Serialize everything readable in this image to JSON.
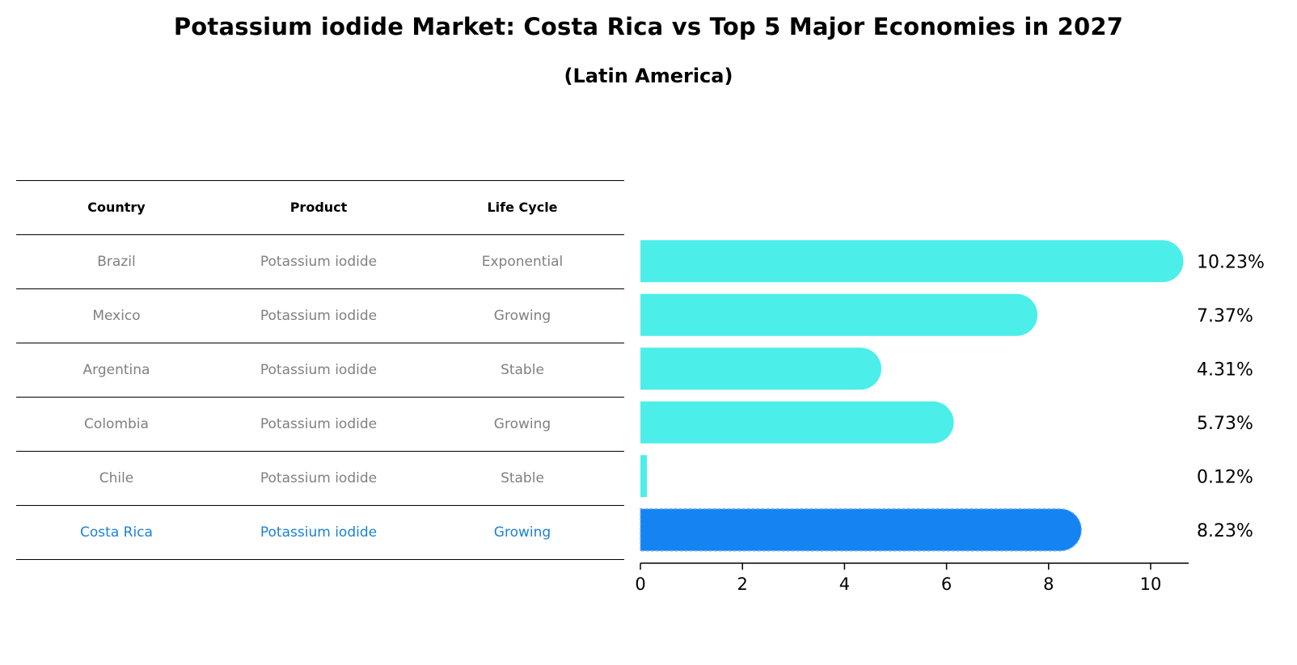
{
  "title": "Potassium iodide Market: Costa Rica vs Top 5 Major Economies in 2027",
  "subtitle": "(Latin America)",
  "table": {
    "headers": [
      "Country",
      "Product",
      "Life Cycle"
    ],
    "rows": [
      {
        "country": "Brazil",
        "product": "Potassium iodide",
        "life_cycle": "Exponential"
      },
      {
        "country": "Mexico",
        "product": "Potassium iodide",
        "life_cycle": "Growing"
      },
      {
        "country": "Argentina",
        "product": "Potassium iodide",
        "life_cycle": "Stable"
      },
      {
        "country": "Colombia",
        "product": "Potassium iodide",
        "life_cycle": "Growing"
      },
      {
        "country": "Chile",
        "product": "Potassium iodide",
        "life_cycle": "Stable"
      },
      {
        "country": "Costa Rica",
        "product": "Potassium iodide",
        "life_cycle": "Growing"
      }
    ]
  },
  "colors": {
    "bar": "#4ceee9",
    "highlight_bar": "#1583f1",
    "highlight_text": "#1a82d6",
    "muted_text": "#808080"
  },
  "chart_data": {
    "type": "bar",
    "orientation": "horizontal",
    "categories": [
      "Brazil",
      "Mexico",
      "Argentina",
      "Colombia",
      "Chile",
      "Costa Rica"
    ],
    "values": [
      10.23,
      7.37,
      4.31,
      5.73,
      0.12,
      8.23
    ],
    "value_labels": [
      "10.23%",
      "7.37%",
      "4.31%",
      "5.73%",
      "0.12%",
      "8.23%"
    ],
    "highlight": "Costa Rica",
    "xlim": [
      0,
      10.74
    ],
    "xticks": [
      0,
      2,
      4,
      6,
      8,
      10
    ],
    "xlabel": "",
    "ylabel": "",
    "grid": false
  }
}
